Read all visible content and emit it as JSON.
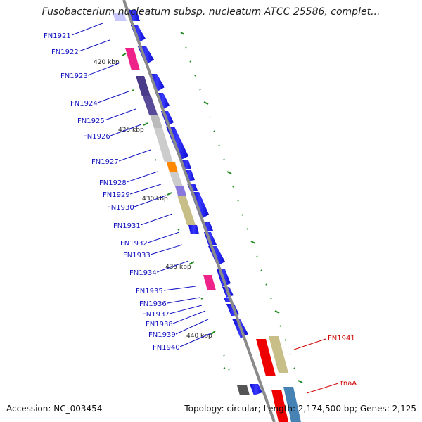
{
  "title": "Fusobacterium nucleatum subsp. nucleatum ATCC 25586, complet...",
  "footer": {
    "accession": "Accession: NC_003454",
    "summary": "Topology: circular; Length: 2,174,500 bp; Genes: 2,125"
  },
  "colors": {
    "backbone": "#8a8a8a",
    "tick": "#228B22",
    "gene_label_blue": "#1010c0",
    "gene_label_red": "#d00000",
    "forward_gene": "#1a1aee"
  },
  "scale_labels": [
    "420 kbp",
    "425 kbp",
    "430 kbp",
    "435 kbp",
    "440 kbp"
  ],
  "gene_labels": [
    {
      "text": "FN1921",
      "color": "blue"
    },
    {
      "text": "FN1922",
      "color": "blue"
    },
    {
      "text": "FN1923",
      "color": "blue"
    },
    {
      "text": "FN1924",
      "color": "blue"
    },
    {
      "text": "FN1925",
      "color": "blue"
    },
    {
      "text": "FN1926",
      "color": "blue"
    },
    {
      "text": "FN1927",
      "color": "blue"
    },
    {
      "text": "FN1928",
      "color": "blue"
    },
    {
      "text": "FN1929",
      "color": "blue"
    },
    {
      "text": "FN1930",
      "color": "blue"
    },
    {
      "text": "FN1931",
      "color": "blue"
    },
    {
      "text": "FN1932",
      "color": "blue"
    },
    {
      "text": "FN1933",
      "color": "blue"
    },
    {
      "text": "FN1934",
      "color": "blue"
    },
    {
      "text": "FN1935",
      "color": "blue"
    },
    {
      "text": "FN1936",
      "color": "blue"
    },
    {
      "text": "FN1937",
      "color": "blue"
    },
    {
      "text": "FN1938",
      "color": "blue"
    },
    {
      "text": "FN1939",
      "color": "blue"
    },
    {
      "text": "FN1940",
      "color": "blue"
    },
    {
      "text": "FN1941",
      "color": "red"
    },
    {
      "text": "tnaA",
      "color": "red"
    }
  ]
}
